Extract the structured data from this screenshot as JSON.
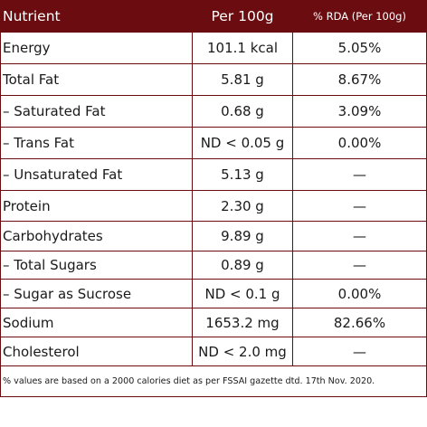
{
  "table": {
    "headers": {
      "nutrient": "Nutrient",
      "per_100g": "Per 100g",
      "rda": "% RDA (Per 100g)"
    },
    "rows": [
      {
        "nutrient": "Energy",
        "per_100g": "101.1 kcal",
        "rda": "5.05%"
      },
      {
        "nutrient": "Total Fat",
        "per_100g": "5.81 g",
        "rda": "8.67%"
      },
      {
        "nutrient": "– Saturated Fat",
        "per_100g": "0.68 g",
        "rda": "3.09%"
      },
      {
        "nutrient": "– Trans Fat",
        "per_100g": "ND < 0.05 g",
        "rda": "0.00%"
      },
      {
        "nutrient": "– Unsaturated Fat",
        "per_100g": "5.13 g",
        "rda": "—"
      },
      {
        "nutrient": "Protein",
        "per_100g": "2.30 g",
        "rda": "—"
      },
      {
        "nutrient": "Carbohydrates",
        "per_100g": "9.89 g",
        "rda": "—"
      },
      {
        "nutrient": "– Total Sugars",
        "per_100g": "0.89 g",
        "rda": "—"
      },
      {
        "nutrient": "– Sugar as Sucrose",
        "per_100g": "ND < 0.1 g",
        "rda": "0.00%"
      },
      {
        "nutrient": "Sodium",
        "per_100g": "1653.2 mg",
        "rda": "82.66%"
      },
      {
        "nutrient": "Cholesterol",
        "per_100g": "ND < 2.0 mg",
        "rda": "—"
      }
    ],
    "footnote": "% values are based on a 2000 calories diet as per FSSAI gazette dtd. 17th Nov. 2020."
  },
  "colors": {
    "header_background": "#6b0d10",
    "header_text": "#ffffff",
    "border": "#6b0d10",
    "body_text": "#1a1a1a"
  }
}
